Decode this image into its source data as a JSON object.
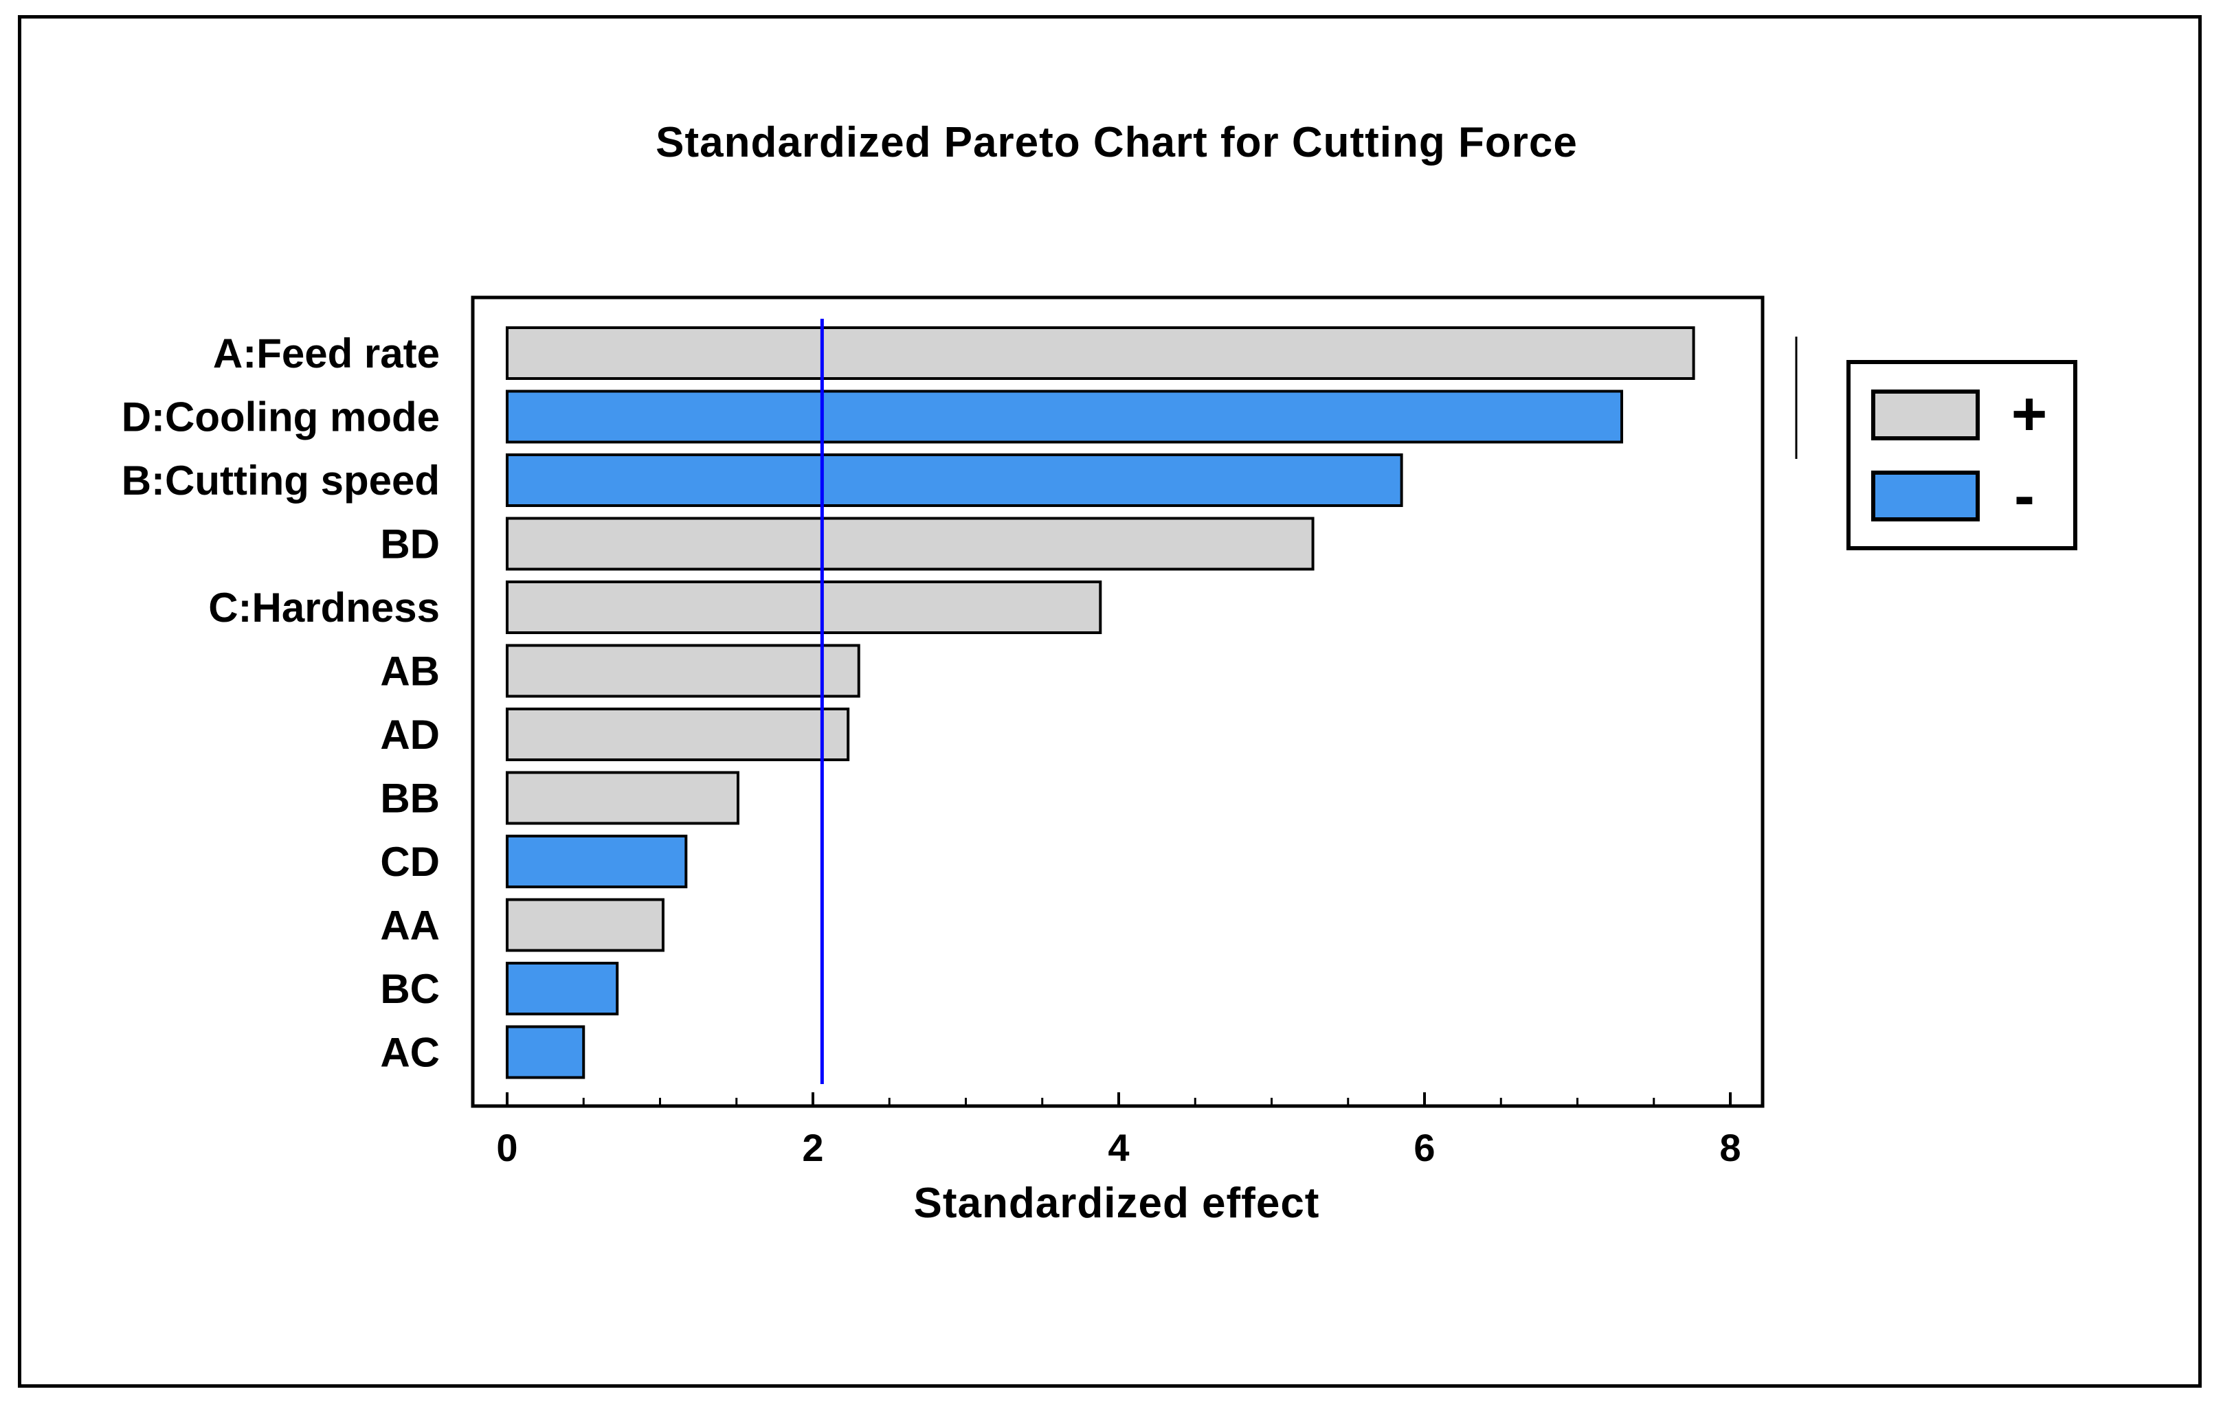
{
  "chart_data": {
    "type": "bar",
    "orientation": "horizontal",
    "title": "Standardized Pareto Chart for Cutting Force",
    "xlabel": "Standardized effect",
    "ylabel": "",
    "xlim": [
      0,
      8.3
    ],
    "xticks": [
      0,
      2,
      4,
      6,
      8
    ],
    "reference_line": 2.06,
    "categories": [
      "A:Feed rate",
      "D:Cooling mode",
      "B:Cutting speed",
      "BD",
      "C:Hardness",
      "AB",
      "AD",
      "BB",
      "CD",
      "AA",
      "BC",
      "AC"
    ],
    "values": [
      7.76,
      7.29,
      5.85,
      5.27,
      3.88,
      2.3,
      2.23,
      1.51,
      1.17,
      1.02,
      0.72,
      0.5
    ],
    "signs": [
      "+",
      "-",
      "-",
      "+",
      "+",
      "+",
      "+",
      "+",
      "-",
      "+",
      "-",
      "-"
    ],
    "legend": [
      {
        "label": "+",
        "color": "#d3d3d3"
      },
      {
        "label": "-",
        "color": "#4396ee"
      }
    ],
    "legend_position": "right"
  },
  "colors": {
    "positive": "#d3d3d3",
    "negative": "#4396ee",
    "reference_line": "#0000ff",
    "frame": "#000000"
  }
}
